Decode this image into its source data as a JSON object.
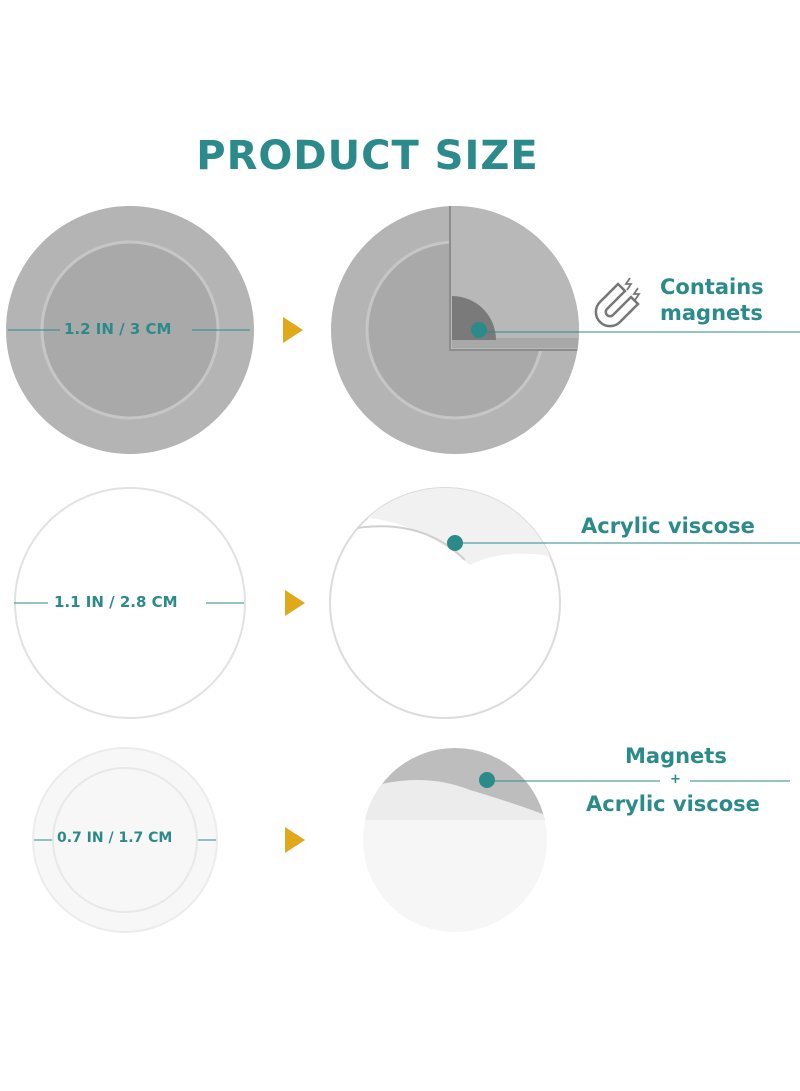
{
  "title": "PRODUCT SIZE",
  "colors": {
    "accent": "#2b8a8a",
    "arrow": "#e0a91a",
    "gray": "#b0b0b0"
  },
  "rows": [
    {
      "size": "1.2 IN / 3 CM",
      "feature_icon": "magnet-icon",
      "label_lines": [
        "Contains",
        "magnets"
      ]
    },
    {
      "size": "1.1 IN / 2.8 CM",
      "label_lines": [
        "Acrylic viscose"
      ]
    },
    {
      "size": "0.7 IN / 1.7 CM",
      "label_lines": [
        "Magnets",
        "+",
        "Acrylic viscose"
      ]
    }
  ]
}
